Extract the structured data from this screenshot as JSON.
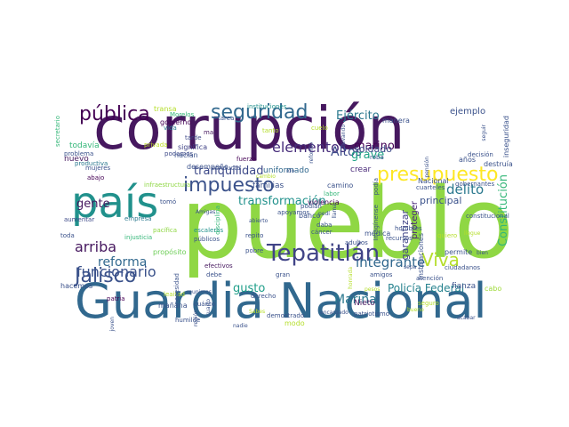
{
  "words": [
    {
      "text": "corrupción",
      "color": "#46185f"
    },
    {
      "text": "pueblo",
      "color": "#8fd744"
    },
    {
      "text": "Guardia Nacional",
      "color": "#31688e"
    },
    {
      "text": "país",
      "color": "#21918c"
    },
    {
      "text": "Tepatitlán",
      "color": "#414487"
    },
    {
      "text": "impuesto",
      "color": "#3b528b"
    },
    {
      "text": "presupuesto",
      "color": "#fde725"
    },
    {
      "text": "Jalisco",
      "color": "#3b528b"
    },
    {
      "text": "Viva",
      "color": "#b5de2b"
    },
    {
      "text": "seguridad",
      "color": "#31688e"
    },
    {
      "text": "pública",
      "color": "#440154"
    },
    {
      "text": "elementos",
      "color": "#472d7b"
    },
    {
      "text": "integrante",
      "color": "#31688e"
    },
    {
      "text": "arriba",
      "color": "#46185f"
    },
    {
      "text": "funcionario",
      "color": "#3b528b"
    },
    {
      "text": "delito",
      "color": "#2a788e"
    },
    {
      "text": "Altos",
      "color": "#3e4a89"
    },
    {
      "text": "Constitución",
      "color": "#35b779"
    },
    {
      "text": "marino",
      "color": "#440154"
    },
    {
      "text": "Policía Federal",
      "color": "#26828e"
    },
    {
      "text": "Ejército",
      "color": "#2a788e"
    },
    {
      "text": "ejemplo",
      "color": "#3b528b"
    },
    {
      "text": "grave",
      "color": "#20a386"
    },
    {
      "text": "tranquilidad",
      "color": "#3e4a89"
    },
    {
      "text": "transformación",
      "color": "#21918c"
    },
    {
      "text": "proteger",
      "color": "#482878"
    },
    {
      "text": "gusto",
      "color": "#1f9e89"
    },
    {
      "text": "reforma",
      "color": "#31688e"
    },
    {
      "text": "gente",
      "color": "#46185f"
    },
    {
      "text": "Marina",
      "color": "#2a788e"
    },
    {
      "text": "principal",
      "color": "#3b528b"
    },
    {
      "text": "soldado",
      "color": "#3e4a89"
    },
    {
      "text": "garantizar",
      "color": "#414487"
    },
    {
      "text": "Nieto",
      "color": "#46185f"
    },
    {
      "text": "fianza",
      "color": "#3b528b"
    },
    {
      "text": "crear",
      "color": "#482878"
    },
    {
      "text": "cabo",
      "color": "#9fda3a"
    },
    {
      "text": "camino",
      "color": "#3b528b"
    }
  ],
  "small_words": [
    {
      "text": "transa",
      "color": "#b5de2b",
      "dir": "h"
    },
    {
      "text": "Morelos",
      "color": "#35b779",
      "dir": "h"
    },
    {
      "text": "instituciones",
      "color": "#21918c",
      "dir": "h"
    },
    {
      "text": "tarea",
      "color": "#3b528b",
      "dir": "h"
    },
    {
      "text": "manera",
      "color": "#3b528b",
      "dir": "h"
    },
    {
      "text": "gobierno",
      "color": "#440154",
      "dir": "h"
    },
    {
      "text": "vida",
      "color": "#2a788e",
      "dir": "h"
    },
    {
      "text": "mal",
      "color": "#46185f",
      "dir": "h"
    },
    {
      "text": "todavía",
      "color": "#35b779",
      "dir": "h"
    },
    {
      "text": "nuevo",
      "color": "#46185f",
      "dir": "h"
    },
    {
      "text": "problema",
      "color": "#3b528b",
      "dir": "h"
    },
    {
      "text": "privada",
      "color": "#bddf26",
      "dir": "h"
    },
    {
      "text": "podamos",
      "color": "#3e4a89",
      "dir": "h"
    },
    {
      "text": "desempeño",
      "color": "#3b528b",
      "dir": "h"
    },
    {
      "text": "conducta",
      "color": "#3b528b",
      "dir": "h"
    },
    {
      "text": "significa",
      "color": "#414487",
      "dir": "h"
    },
    {
      "text": "hacían",
      "color": "#3b528b",
      "dir": "h"
    },
    {
      "text": "tarde",
      "color": "#3e4a89",
      "dir": "h"
    },
    {
      "text": "fuerza",
      "color": "#440154",
      "dir": "h"
    },
    {
      "text": "tanto",
      "color": "#b5de2b",
      "dir": "h"
    },
    {
      "text": "cuelo",
      "color": "#b5de2b",
      "dir": "h"
    },
    {
      "text": "uniformado",
      "color": "#31688e",
      "dir": "h"
    },
    {
      "text": "familias",
      "color": "#3b528b",
      "dir": "h"
    },
    {
      "text": "empresa",
      "color": "#2a788e",
      "dir": "h"
    },
    {
      "text": "productiva",
      "color": "#2a788e",
      "dir": "h"
    },
    {
      "text": "mujeres",
      "color": "#3b528b",
      "dir": "h"
    },
    {
      "text": "abajo",
      "color": "#440154",
      "dir": "h"
    },
    {
      "text": "infraestructura",
      "color": "#8fd744",
      "dir": "h"
    },
    {
      "text": "tomó",
      "color": "#3b528b",
      "dir": "h"
    },
    {
      "text": "aumentar",
      "color": "#3e4a89",
      "dir": "h"
    },
    {
      "text": "toda",
      "color": "#3b528b",
      "dir": "h"
    },
    {
      "text": "pacífica",
      "color": "#8fd744",
      "dir": "h"
    },
    {
      "text": "injusticia",
      "color": "#35b779",
      "dir": "h"
    },
    {
      "text": "propósito",
      "color": "#6ece58",
      "dir": "h"
    },
    {
      "text": "hacemos",
      "color": "#3b528b",
      "dir": "h"
    },
    {
      "text": "patria",
      "color": "#440154",
      "dir": "h"
    },
    {
      "text": "leaitad",
      "color": "#b5de2b",
      "dir": "h"
    },
    {
      "text": "mañana",
      "color": "#3b528b",
      "dir": "h"
    },
    {
      "text": "efectivos",
      "color": "#46185f",
      "dir": "h"
    },
    {
      "text": "debe",
      "color": "#3b528b",
      "dir": "h"
    },
    {
      "text": "cuánto",
      "color": "#3b528b",
      "dir": "h"
    },
    {
      "text": "humilde",
      "color": "#3b528b",
      "dir": "h"
    },
    {
      "text": "públicos",
      "color": "#3b528b",
      "dir": "h"
    },
    {
      "text": "escaleras",
      "color": "#21918c",
      "dir": "h"
    },
    {
      "text": "repito",
      "color": "#3b528b",
      "dir": "h"
    },
    {
      "text": "pobre",
      "color": "#3b528b",
      "dir": "h"
    },
    {
      "text": "banco",
      "color": "#3b528b",
      "dir": "h"
    },
    {
      "text": "daba",
      "color": "#3b528b",
      "dir": "h"
    },
    {
      "text": "podían",
      "color": "#3b528b",
      "dir": "h"
    },
    {
      "text": "labor",
      "color": "#35b779",
      "dir": "h"
    },
    {
      "text": "cáncer",
      "color": "#3b528b",
      "dir": "h"
    },
    {
      "text": "médica",
      "color": "#3b528b",
      "dir": "h"
    },
    {
      "text": "adultos",
      "color": "#3b528b",
      "dir": "h"
    },
    {
      "text": "hombres",
      "color": "#3b528b",
      "dir": "h"
    },
    {
      "text": "recursos",
      "color": "#3b528b",
      "dir": "h"
    },
    {
      "text": "violencia",
      "color": "#440154",
      "dir": "h"
    },
    {
      "text": "apoyamos",
      "color": "#3b528b",
      "dir": "h"
    },
    {
      "text": "gran",
      "color": "#3b528b",
      "dir": "h"
    },
    {
      "text": "modo",
      "color": "#b5de2b",
      "dir": "h"
    },
    {
      "text": "demostrado",
      "color": "#3b528b",
      "dir": "h"
    },
    {
      "text": "derecho",
      "color": "#3b528b",
      "dir": "h"
    },
    {
      "text": "patriotismo",
      "color": "#3b528b",
      "dir": "h"
    },
    {
      "text": "seguro",
      "color": "#b5de2b",
      "dir": "h"
    },
    {
      "text": "atención",
      "color": "#3b528b",
      "dir": "h"
    },
    {
      "text": "permite",
      "color": "#3b528b",
      "dir": "h"
    },
    {
      "text": "ciudadanos",
      "color": "#3b528b",
      "dir": "h"
    },
    {
      "text": "constitucional",
      "color": "#3b528b",
      "dir": "h"
    },
    {
      "text": "llegue",
      "color": "#b5de2b",
      "dir": "h"
    },
    {
      "text": "quiero",
      "color": "#b5de2b",
      "dir": "h"
    },
    {
      "text": "destruía",
      "color": "#3b528b",
      "dir": "h"
    },
    {
      "text": "decisión",
      "color": "#3b528b",
      "dir": "h"
    },
    {
      "text": "roba",
      "color": "#3b528b",
      "dir": "h"
    },
    {
      "text": "años",
      "color": "#3b528b",
      "dir": "h"
    },
    {
      "text": "amigos",
      "color": "#3b528b",
      "dir": "h"
    },
    {
      "text": "Nacional",
      "color": "#3b528b",
      "dir": "h"
    },
    {
      "text": "cuarteles",
      "color": "#3b528b",
      "dir": "h"
    },
    {
      "text": "gobernantes",
      "color": "#3b528b",
      "dir": "h"
    },
    {
      "text": "bien",
      "color": "#3b528b",
      "dir": "h"
    },
    {
      "text": "secretario",
      "color": "#35b779",
      "dir": "v"
    },
    {
      "text": "necesidad",
      "color": "#3b528b",
      "dir": "v"
    },
    {
      "text": "disciplina",
      "color": "#35b779",
      "dir": "v"
    },
    {
      "text": "Imagínense",
      "color": "#3b528b",
      "dir": "v"
    },
    {
      "text": "inseguridad",
      "color": "#3b528b",
      "dir": "v"
    },
    {
      "text": "seguir",
      "color": "#3b528b",
      "dir": "v"
    },
    {
      "text": "instalaciones",
      "color": "#3b528b",
      "dir": "v"
    },
    {
      "text": "llevando",
      "color": "#3b528b",
      "dir": "v"
    },
    {
      "text": "reformó",
      "color": "#3b528b",
      "dir": "v"
    },
    {
      "text": "pensión",
      "color": "#3b528b",
      "dir": "v"
    },
    {
      "text": "honrada",
      "color": "#b5de2b",
      "dir": "v"
    },
    {
      "text": "joven",
      "color": "#3b528b",
      "dir": "v"
    },
    {
      "text": "podía",
      "color": "#3b528b",
      "dir": "v"
    },
    {
      "text": "llama",
      "color": "#3b528b",
      "dir": "v"
    },
    {
      "text": "cuarto",
      "color": "#3b528b",
      "dir": "v"
    },
    {
      "text": "región",
      "color": "#3b528b",
      "dir": "v"
    },
    {
      "text": "Amigas",
      "color": "#3b528b",
      "dir": "h"
    },
    {
      "text": "Sabes",
      "color": "#b5de2b",
      "dir": "h"
    },
    {
      "text": "reunimos",
      "color": "#3b528b",
      "dir": "h"
    },
    {
      "text": "nadie",
      "color": "#3b528b",
      "dir": "h"
    },
    {
      "text": "bueno",
      "color": "#b5de2b",
      "dir": "h"
    },
    {
      "text": "sepa",
      "color": "#3b528b",
      "dir": "h"
    },
    {
      "text": "ido",
      "color": "#3b528b",
      "dir": "h"
    },
    {
      "text": "acabar",
      "color": "#3b528b",
      "dir": "h"
    },
    {
      "text": "pesos",
      "color": "#b5de2b",
      "dir": "h"
    },
    {
      "text": "pedí",
      "color": "#3b528b",
      "dir": "h"
    },
    {
      "text": "cambio",
      "color": "#b5de2b",
      "dir": "h"
    },
    {
      "text": "abierto",
      "color": "#3b528b",
      "dir": "h"
    },
    {
      "text": "encargado",
      "color": "#3b528b",
      "dir": "h"
    }
  ]
}
